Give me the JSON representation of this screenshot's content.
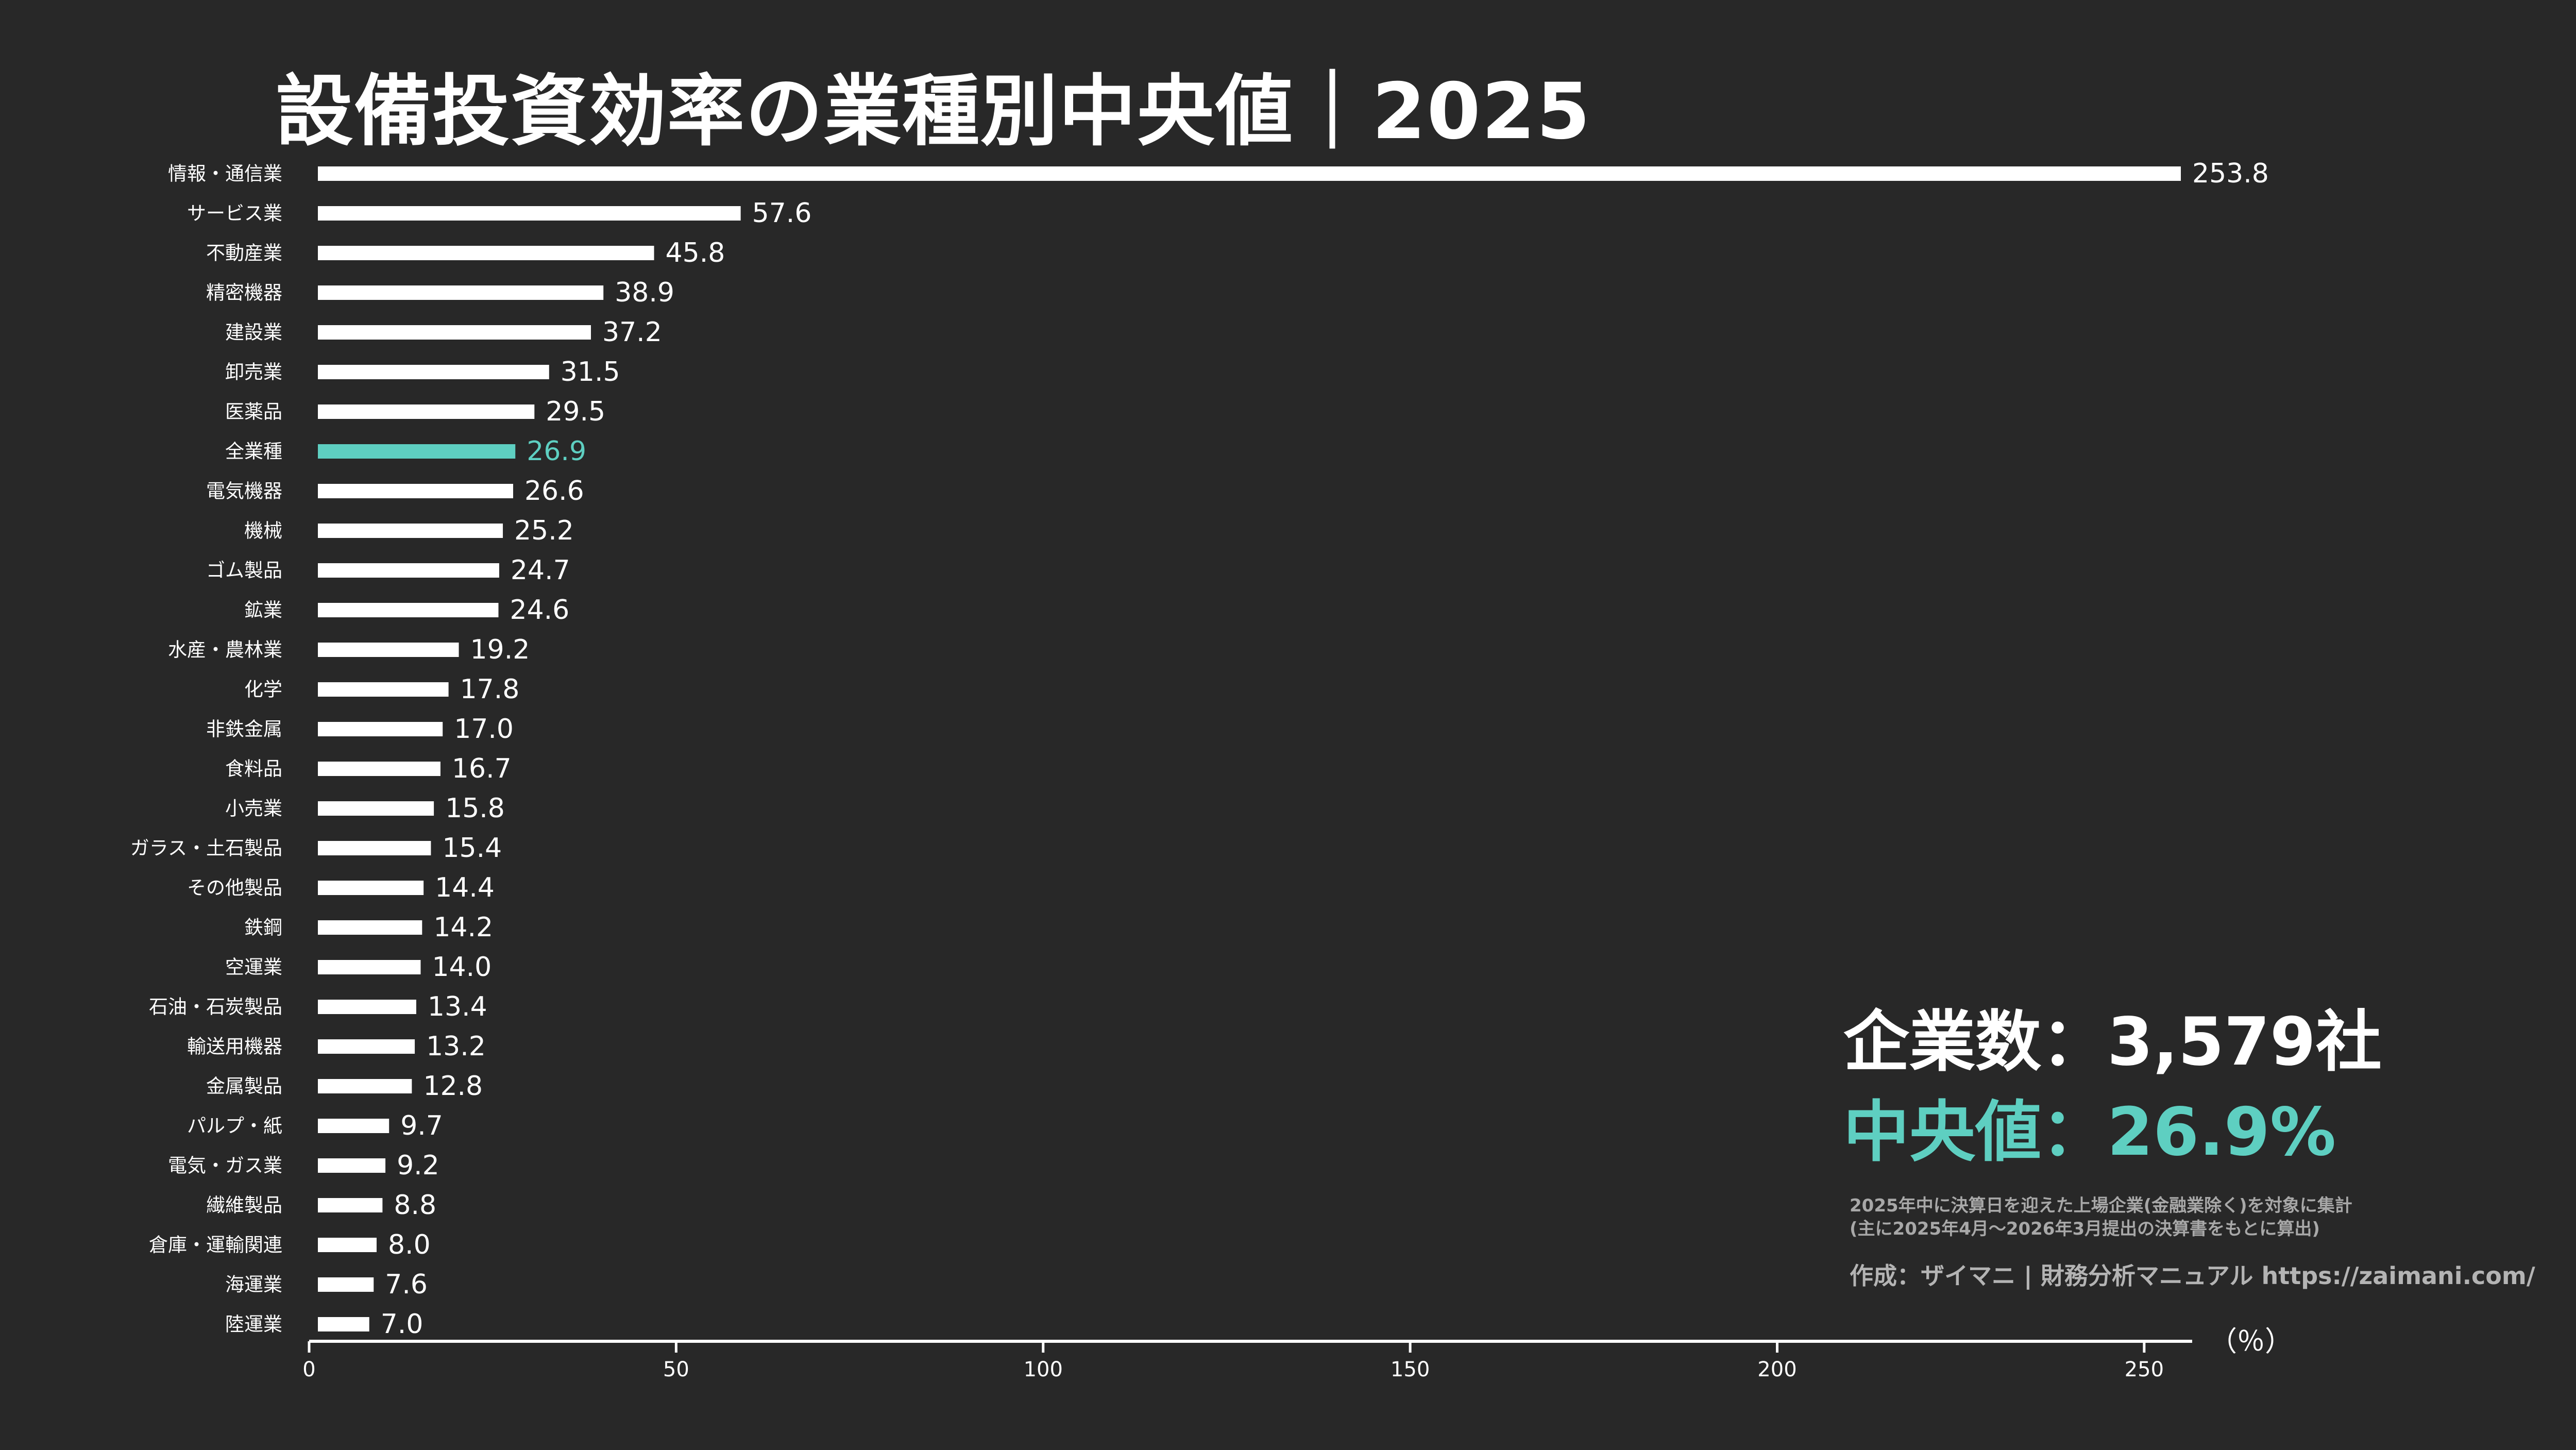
{
  "title": "設備投資効率の業種別中央値｜2025",
  "stats": {
    "count_text": "企業数：3,579社",
    "median_text": "中央値：26.9%"
  },
  "note": {
    "line1": "2025年中に決算日を迎えた上場企業(金融業除く)を対象に集計",
    "line2": "(主に2025年4月〜2026年3月提出の決算書をもとに算出)"
  },
  "credit": "作成：ザイマニ | 財務分析マニュアル https://zaimani.com/",
  "colors": {
    "background": "#282828",
    "bar": "#ffffff",
    "highlight": "#5ecfc1",
    "text": "#ffffff"
  },
  "chart_data": {
    "type": "bar",
    "orientation": "horizontal",
    "title": "設備投資効率の業種別中央値｜2025",
    "xlabel": "（％）",
    "ylabel": "",
    "xlim": [
      0,
      253.8
    ],
    "xticks": [
      0,
      50,
      100,
      150,
      200,
      250
    ],
    "highlight_category": "全業種",
    "categories": [
      "情報・通信業",
      "サービス業",
      "不動産業",
      "精密機器",
      "建設業",
      "卸売業",
      "医薬品",
      "全業種",
      "電気機器",
      "機械",
      "ゴム製品",
      "鉱業",
      "水産・農林業",
      "化学",
      "非鉄金属",
      "食料品",
      "小売業",
      "ガラス・土石製品",
      "その他製品",
      "鉄鋼",
      "空運業",
      "石油・石炭製品",
      "輸送用機器",
      "金属製品",
      "パルプ・紙",
      "電気・ガス業",
      "繊維製品",
      "倉庫・運輸関連",
      "海運業",
      "陸運業"
    ],
    "values": [
      253.8,
      57.6,
      45.8,
      38.9,
      37.2,
      31.5,
      29.5,
      26.9,
      26.6,
      25.2,
      24.7,
      24.6,
      19.2,
      17.8,
      17.0,
      16.7,
      15.8,
      15.4,
      14.4,
      14.2,
      14.0,
      13.4,
      13.2,
      12.8,
      9.7,
      9.2,
      8.8,
      8.0,
      7.6,
      7.0
    ],
    "value_labels": [
      "253.8",
      "57.6",
      "45.8",
      "38.9",
      "37.2",
      "31.5",
      "29.5",
      "26.9",
      "26.6",
      "25.2",
      "24.7",
      "24.6",
      "19.2",
      "17.8",
      "17.0",
      "16.7",
      "15.8",
      "15.4",
      "14.4",
      "14.2",
      "14.0",
      "13.4",
      "13.2",
      "12.8",
      "9.7",
      "9.2",
      "8.8",
      "8.0",
      "7.6",
      "7.0"
    ],
    "grid": false,
    "legend": "none"
  }
}
